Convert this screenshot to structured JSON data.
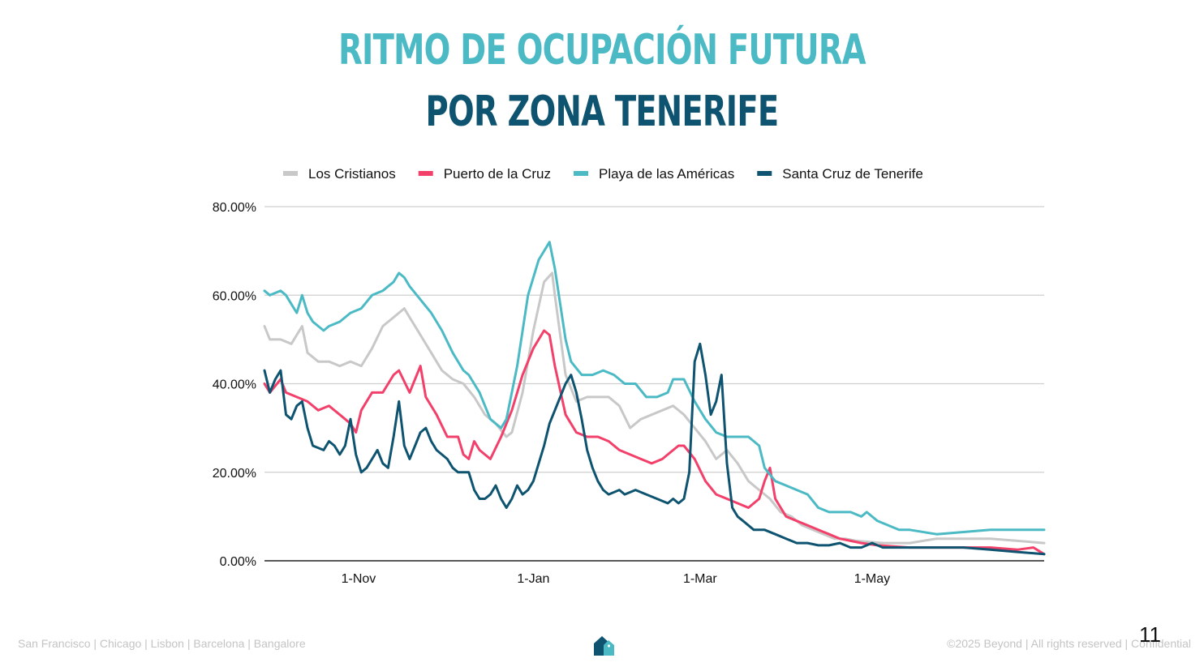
{
  "slide": {
    "title_line1": "Ritmo de ocupación futura",
    "title_line2": "por zona Tenerife",
    "page_number": "11",
    "footer_left": "San Francisco | Chicago | Lisbon | Barcelona | Bangalore",
    "footer_right": "©2025 Beyond | All rights reserved | Confidential",
    "logo_icon": "home-tag-logo-icon"
  },
  "colors": {
    "title_line1": "#4BBAC5",
    "title_line2": "#0E5470",
    "grid": "#cfcfcf",
    "axis": "#222222"
  },
  "chart_data": {
    "type": "line",
    "title": "",
    "xlabel": "",
    "ylabel": "",
    "x_range": [
      0,
      290
    ],
    "ylim": [
      0,
      80
    ],
    "y_ticks": [
      0,
      20,
      40,
      60,
      80
    ],
    "y_tick_labels": [
      "0.00%",
      "20.00%",
      "40.00%",
      "60.00%",
      "80.00%"
    ],
    "x_ticks": [
      35,
      100,
      162,
      226
    ],
    "x_tick_labels": [
      "1-Nov",
      "1-Jan",
      "1-Mar",
      "1-May"
    ],
    "grid": true,
    "legend_position": "top",
    "series": [
      {
        "name": "Los Cristianos",
        "color": "#C8C8C8",
        "points": [
          [
            0,
            53
          ],
          [
            2,
            50
          ],
          [
            6,
            50
          ],
          [
            10,
            49
          ],
          [
            14,
            53
          ],
          [
            16,
            47
          ],
          [
            20,
            45
          ],
          [
            24,
            45
          ],
          [
            28,
            44
          ],
          [
            32,
            45
          ],
          [
            36,
            44
          ],
          [
            40,
            48
          ],
          [
            44,
            53
          ],
          [
            48,
            55
          ],
          [
            52,
            57
          ],
          [
            54,
            55
          ],
          [
            58,
            51
          ],
          [
            62,
            47
          ],
          [
            66,
            43
          ],
          [
            70,
            41
          ],
          [
            74,
            40
          ],
          [
            78,
            37
          ],
          [
            82,
            33
          ],
          [
            86,
            31
          ],
          [
            90,
            28
          ],
          [
            92,
            29
          ],
          [
            96,
            38
          ],
          [
            100,
            52
          ],
          [
            104,
            63
          ],
          [
            107,
            65
          ],
          [
            108,
            60
          ],
          [
            112,
            42
          ],
          [
            116,
            36
          ],
          [
            120,
            37
          ],
          [
            124,
            37
          ],
          [
            128,
            37
          ],
          [
            132,
            35
          ],
          [
            136,
            30
          ],
          [
            140,
            32
          ],
          [
            144,
            33
          ],
          [
            148,
            34
          ],
          [
            152,
            35
          ],
          [
            156,
            33
          ],
          [
            160,
            30
          ],
          [
            164,
            27
          ],
          [
            168,
            23
          ],
          [
            172,
            25
          ],
          [
            176,
            22
          ],
          [
            180,
            18
          ],
          [
            184,
            16
          ],
          [
            188,
            14
          ],
          [
            192,
            11
          ],
          [
            196,
            10
          ],
          [
            200,
            8
          ],
          [
            204,
            7
          ],
          [
            208,
            6
          ],
          [
            212,
            5
          ],
          [
            216,
            5
          ],
          [
            220,
            4.5
          ],
          [
            230,
            4
          ],
          [
            240,
            4
          ],
          [
            250,
            5
          ],
          [
            260,
            5
          ],
          [
            270,
            5
          ],
          [
            280,
            4.5
          ],
          [
            290,
            4
          ]
        ]
      },
      {
        "name": "Puerto de la Cruz",
        "color": "#F2406A",
        "points": [
          [
            0,
            40
          ],
          [
            2,
            38
          ],
          [
            6,
            41
          ],
          [
            8,
            38
          ],
          [
            12,
            37
          ],
          [
            16,
            36
          ],
          [
            20,
            34
          ],
          [
            24,
            35
          ],
          [
            28,
            33
          ],
          [
            32,
            31
          ],
          [
            34,
            29
          ],
          [
            36,
            34
          ],
          [
            40,
            38
          ],
          [
            44,
            38
          ],
          [
            48,
            42
          ],
          [
            50,
            43
          ],
          [
            54,
            38
          ],
          [
            58,
            44
          ],
          [
            60,
            37
          ],
          [
            64,
            33
          ],
          [
            68,
            28
          ],
          [
            72,
            28
          ],
          [
            74,
            24
          ],
          [
            76,
            23
          ],
          [
            78,
            27
          ],
          [
            80,
            25
          ],
          [
            84,
            23
          ],
          [
            88,
            28
          ],
          [
            92,
            34
          ],
          [
            96,
            42
          ],
          [
            100,
            48
          ],
          [
            104,
            52
          ],
          [
            106,
            51
          ],
          [
            108,
            44
          ],
          [
            112,
            33
          ],
          [
            116,
            29
          ],
          [
            120,
            28
          ],
          [
            124,
            28
          ],
          [
            128,
            27
          ],
          [
            132,
            25
          ],
          [
            136,
            24
          ],
          [
            140,
            23
          ],
          [
            144,
            22
          ],
          [
            148,
            23
          ],
          [
            152,
            25
          ],
          [
            154,
            26
          ],
          [
            156,
            26
          ],
          [
            160,
            23
          ],
          [
            164,
            18
          ],
          [
            168,
            15
          ],
          [
            172,
            14
          ],
          [
            176,
            13
          ],
          [
            180,
            12
          ],
          [
            184,
            14
          ],
          [
            186,
            18
          ],
          [
            188,
            21
          ],
          [
            190,
            14
          ],
          [
            194,
            10
          ],
          [
            198,
            9
          ],
          [
            202,
            8
          ],
          [
            206,
            7
          ],
          [
            210,
            6
          ],
          [
            214,
            5
          ],
          [
            218,
            4.5
          ],
          [
            222,
            4
          ],
          [
            228,
            3.5
          ],
          [
            240,
            3
          ],
          [
            250,
            3
          ],
          [
            260,
            3
          ],
          [
            270,
            3
          ],
          [
            280,
            2.5
          ],
          [
            286,
            3
          ],
          [
            290,
            1.5
          ]
        ]
      },
      {
        "name": "Playa de las Américas",
        "color": "#4BBAC5",
        "points": [
          [
            0,
            61
          ],
          [
            2,
            60
          ],
          [
            6,
            61
          ],
          [
            8,
            60
          ],
          [
            10,
            58
          ],
          [
            12,
            56
          ],
          [
            14,
            60
          ],
          [
            16,
            56
          ],
          [
            18,
            54
          ],
          [
            22,
            52
          ],
          [
            24,
            53
          ],
          [
            28,
            54
          ],
          [
            32,
            56
          ],
          [
            36,
            57
          ],
          [
            40,
            60
          ],
          [
            44,
            61
          ],
          [
            46,
            62
          ],
          [
            48,
            63
          ],
          [
            50,
            65
          ],
          [
            52,
            64
          ],
          [
            54,
            62
          ],
          [
            58,
            59
          ],
          [
            62,
            56
          ],
          [
            66,
            52
          ],
          [
            70,
            47
          ],
          [
            74,
            43
          ],
          [
            76,
            42
          ],
          [
            80,
            38
          ],
          [
            84,
            32
          ],
          [
            86,
            31
          ],
          [
            88,
            30
          ],
          [
            90,
            32
          ],
          [
            94,
            44
          ],
          [
            98,
            60
          ],
          [
            102,
            68
          ],
          [
            106,
            72
          ],
          [
            108,
            66
          ],
          [
            112,
            50
          ],
          [
            114,
            45
          ],
          [
            118,
            42
          ],
          [
            122,
            42
          ],
          [
            126,
            43
          ],
          [
            130,
            42
          ],
          [
            134,
            40
          ],
          [
            138,
            40
          ],
          [
            142,
            37
          ],
          [
            146,
            37
          ],
          [
            150,
            38
          ],
          [
            152,
            41
          ],
          [
            156,
            41
          ],
          [
            160,
            36
          ],
          [
            164,
            32
          ],
          [
            168,
            29
          ],
          [
            172,
            28
          ],
          [
            176,
            28
          ],
          [
            180,
            28
          ],
          [
            184,
            26
          ],
          [
            186,
            21
          ],
          [
            190,
            18
          ],
          [
            194,
            17
          ],
          [
            198,
            16
          ],
          [
            202,
            15
          ],
          [
            206,
            12
          ],
          [
            210,
            11
          ],
          [
            214,
            11
          ],
          [
            218,
            11
          ],
          [
            222,
            10
          ],
          [
            224,
            11
          ],
          [
            228,
            9
          ],
          [
            232,
            8
          ],
          [
            236,
            7
          ],
          [
            240,
            7
          ],
          [
            250,
            6
          ],
          [
            260,
            6.5
          ],
          [
            270,
            7
          ],
          [
            280,
            7
          ],
          [
            290,
            7
          ]
        ]
      },
      {
        "name": "Santa Cruz de Tenerife",
        "color": "#0E5470",
        "points": [
          [
            0,
            43
          ],
          [
            2,
            38
          ],
          [
            4,
            41
          ],
          [
            6,
            43
          ],
          [
            8,
            33
          ],
          [
            10,
            32
          ],
          [
            12,
            35
          ],
          [
            14,
            36
          ],
          [
            16,
            30
          ],
          [
            18,
            26
          ],
          [
            22,
            25
          ],
          [
            24,
            27
          ],
          [
            26,
            26
          ],
          [
            28,
            24
          ],
          [
            30,
            26
          ],
          [
            32,
            32
          ],
          [
            34,
            24
          ],
          [
            36,
            20
          ],
          [
            38,
            21
          ],
          [
            40,
            23
          ],
          [
            42,
            25
          ],
          [
            44,
            22
          ],
          [
            46,
            21
          ],
          [
            48,
            28
          ],
          [
            50,
            36
          ],
          [
            52,
            26
          ],
          [
            54,
            23
          ],
          [
            56,
            26
          ],
          [
            58,
            29
          ],
          [
            60,
            30
          ],
          [
            62,
            27
          ],
          [
            64,
            25
          ],
          [
            66,
            24
          ],
          [
            68,
            23
          ],
          [
            70,
            21
          ],
          [
            72,
            20
          ],
          [
            76,
            20
          ],
          [
            78,
            16
          ],
          [
            80,
            14
          ],
          [
            82,
            14
          ],
          [
            84,
            15
          ],
          [
            86,
            17
          ],
          [
            88,
            14
          ],
          [
            90,
            12
          ],
          [
            92,
            14
          ],
          [
            94,
            17
          ],
          [
            96,
            15
          ],
          [
            98,
            16
          ],
          [
            100,
            18
          ],
          [
            102,
            22
          ],
          [
            104,
            26
          ],
          [
            106,
            31
          ],
          [
            108,
            34
          ],
          [
            110,
            37
          ],
          [
            112,
            40
          ],
          [
            114,
            42
          ],
          [
            116,
            38
          ],
          [
            118,
            32
          ],
          [
            120,
            25
          ],
          [
            122,
            21
          ],
          [
            124,
            18
          ],
          [
            126,
            16
          ],
          [
            128,
            15
          ],
          [
            132,
            16
          ],
          [
            134,
            15
          ],
          [
            138,
            16
          ],
          [
            142,
            15
          ],
          [
            146,
            14
          ],
          [
            150,
            13
          ],
          [
            152,
            14
          ],
          [
            154,
            13
          ],
          [
            156,
            14
          ],
          [
            158,
            20
          ],
          [
            160,
            45
          ],
          [
            162,
            49
          ],
          [
            164,
            42
          ],
          [
            166,
            33
          ],
          [
            168,
            36
          ],
          [
            170,
            42
          ],
          [
            172,
            22
          ],
          [
            174,
            12
          ],
          [
            176,
            10
          ],
          [
            178,
            9
          ],
          [
            182,
            7
          ],
          [
            186,
            7
          ],
          [
            190,
            6
          ],
          [
            194,
            5
          ],
          [
            198,
            4
          ],
          [
            202,
            4
          ],
          [
            206,
            3.5
          ],
          [
            210,
            3.5
          ],
          [
            214,
            4
          ],
          [
            218,
            3
          ],
          [
            222,
            3
          ],
          [
            226,
            4
          ],
          [
            230,
            3
          ],
          [
            234,
            3
          ],
          [
            240,
            3
          ],
          [
            250,
            3
          ],
          [
            260,
            3
          ],
          [
            270,
            2.5
          ],
          [
            280,
            2
          ],
          [
            290,
            1.5
          ]
        ]
      }
    ]
  }
}
